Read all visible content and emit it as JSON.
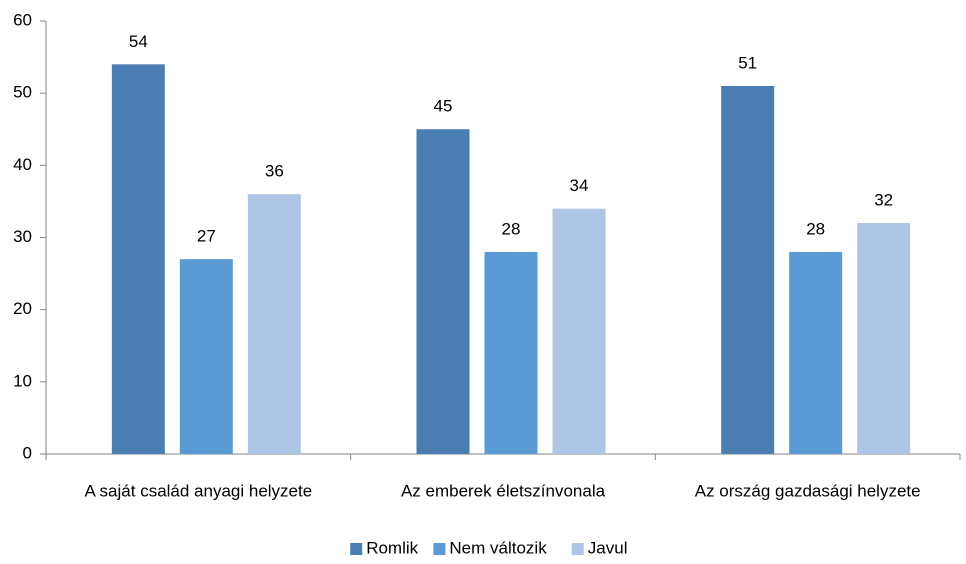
{
  "chart_data": {
    "type": "bar",
    "categories": [
      "A saját család anyagi helyzete",
      "Az emberek életszínvonala",
      "Az ország gazdasági helyzete"
    ],
    "series": [
      {
        "name": "Romlik",
        "color": "#4a7eb3",
        "values": [
          54,
          45,
          51
        ]
      },
      {
        "name": "Nem változik",
        "color": "#5b9bd5",
        "values": [
          27,
          28,
          28
        ]
      },
      {
        "name": "Javul",
        "color": "#aec6e5",
        "values": [
          36,
          34,
          32
        ]
      }
    ],
    "ylim": [
      0,
      60
    ],
    "yticks": [
      0,
      10,
      20,
      30,
      40,
      50,
      60
    ],
    "grid": false,
    "legend": "bottom"
  }
}
